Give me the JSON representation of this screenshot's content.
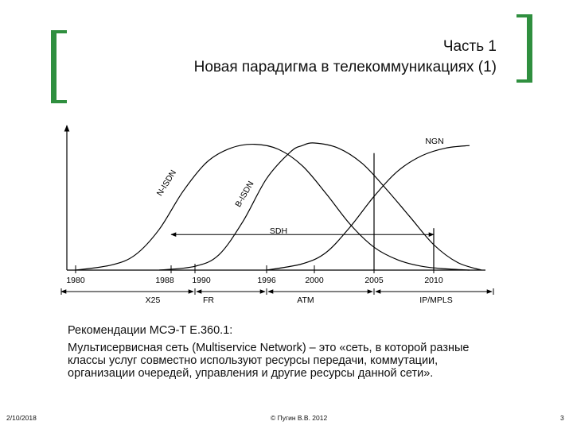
{
  "header": {
    "title_line1": "Часть 1",
    "title_line2": "Новая парадигма в телекоммуникациях (1)"
  },
  "chart_data": {
    "type": "line",
    "title": "",
    "xlabel": "",
    "ylabel": "",
    "x_range": [
      1978,
      2016
    ],
    "y_range": [
      0,
      1
    ],
    "grid": false,
    "year_ticks": [
      {
        "year": 1980,
        "label": "1980"
      },
      {
        "year": 1988,
        "label": "1988"
      },
      {
        "year": 1990,
        "label": "1990"
      },
      {
        "year": 1996,
        "label": "1996"
      },
      {
        "year": 2000,
        "label": "2000"
      },
      {
        "year": 2005,
        "label": "2005"
      },
      {
        "year": 2010,
        "label": "2010"
      }
    ],
    "series": [
      {
        "name": "N-ISDN",
        "x": [
          1980,
          1983,
          1985,
          1987,
          1989,
          1991,
          1993,
          1995,
          1997,
          1999,
          2001,
          2003,
          2005,
          2007,
          2009,
          2011,
          2013
        ],
        "y": [
          0.0,
          0.04,
          0.12,
          0.32,
          0.62,
          0.85,
          0.96,
          0.99,
          0.95,
          0.82,
          0.6,
          0.36,
          0.18,
          0.08,
          0.03,
          0.01,
          0.0
        ]
      },
      {
        "name": "B-ISDN",
        "x": [
          1987,
          1990,
          1992,
          1994,
          1996,
          1998,
          1999,
          2000,
          2002,
          2004,
          2006,
          2008,
          2010,
          2012,
          2014
        ],
        "y": [
          0.0,
          0.03,
          0.12,
          0.38,
          0.72,
          0.93,
          0.98,
          1.0,
          0.96,
          0.84,
          0.64,
          0.42,
          0.2,
          0.06,
          0.0
        ]
      },
      {
        "name": "NGN",
        "x": [
          1996,
          1999,
          2001,
          2003,
          2005,
          2007,
          2009,
          2011,
          2013
        ],
        "y": [
          0.0,
          0.05,
          0.14,
          0.34,
          0.58,
          0.78,
          0.9,
          0.96,
          0.98
        ]
      }
    ],
    "sdh_span": {
      "label": "SDH",
      "from": 1988,
      "to": 2010,
      "y": 0.28
    },
    "vertical_markers": [
      {
        "year": 2005,
        "y_top": 0.92
      },
      {
        "year": 2010,
        "y_top": 0.33
      }
    ],
    "technology_eras": [
      {
        "label": "X25",
        "from": 1980,
        "to": 1990
      },
      {
        "label": "FR",
        "from": 1990,
        "to": 1996
      },
      {
        "label": "ATM",
        "from": 1996,
        "to": 2005
      },
      {
        "label": "IP/MPLS",
        "from": 2005,
        "to": 2015
      }
    ]
  },
  "description": {
    "line1": "Рекомендации МСЭ-Т Е.360.1:",
    "line2": "Мультисервисная сеть (Multiservice Network) – это «сеть, в которой разные",
    "line3": "классы услуг совместно используют ресурсы передачи, коммутации,",
    "line4": "организации очередей, управления и другие ресурсы данной сети»."
  },
  "footer": {
    "date": "2/10/2018",
    "copyright": "© Пугин В.В. 2012",
    "page": "3"
  }
}
